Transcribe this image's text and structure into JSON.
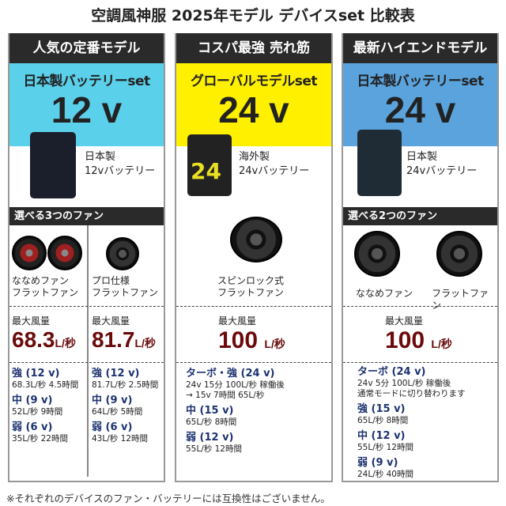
{
  "title": "空調風神服 2025年モデル デバイスset 比較表",
  "columns": [
    {
      "header": "人気の定番モデル",
      "subtitle": "日本製バッテリーset",
      "voltage": "12 v",
      "band_color": "#5bd0ea",
      "battery": {
        "origin": "日本製",
        "name": "12vバッテリー"
      },
      "fan_section": "選べる3つのファン",
      "fans": [
        {
          "label": "ななめファン\nフラットファン",
          "max_label": "最大風量",
          "max_value": "68.3",
          "unit": "L/秒",
          "modes": [
            {
              "name": "強 (12 v)",
              "detail": "68.3L/秒 4.5時間"
            },
            {
              "name": "中 (9 v)",
              "detail": "52L/秒 9時間"
            },
            {
              "name": "弱 (6 v)",
              "detail": "35L/秒 22時間"
            }
          ]
        },
        {
          "label": "プロ仕様\nフラットファン",
          "max_label": "最大風量",
          "max_value": "81.7",
          "unit": "L/秒",
          "modes": [
            {
              "name": "強 (12 v)",
              "detail": "81.7L/秒 2.5時間"
            },
            {
              "name": "中 (9 v)",
              "detail": "64L/秒 5時間"
            },
            {
              "name": "弱 (6 v)",
              "detail": "43L/秒 12時間"
            }
          ]
        }
      ]
    },
    {
      "header": "コスパ最強 売れ筋",
      "subtitle": "グローバルモデルset",
      "voltage": "24 v",
      "band_color": "#fff000",
      "battery": {
        "origin": "海外製",
        "name": "24vバッテリー"
      },
      "fans": [
        {
          "label": "スピンロック式\nフラットファン",
          "max_label": "最大風量",
          "max_value": "100",
          "unit": "L/秒",
          "modes": [
            {
              "name": "ターボ・強 (24 v)",
              "detail": "24v 15分 100L/秒 稼働後\n→ 15v 7時間 65L/秒"
            },
            {
              "name": "中 (15 v)",
              "detail": "65L/秒 8時間"
            },
            {
              "name": "弱 (12 v)",
              "detail": "55L/秒 12時間"
            }
          ]
        }
      ]
    },
    {
      "header": "最新ハイエンドモデル",
      "subtitle": "日本製バッテリーset",
      "voltage": "24 v",
      "band_color": "#5aa3dc",
      "battery": {
        "origin": "日本製",
        "name": "24vバッテリー"
      },
      "fan_section": "選べる2つのファン",
      "fans": [
        {
          "label": "ななめファン",
          "label2": "フラットファン",
          "max_label": "最大風量",
          "max_value": "100",
          "unit": "L/秒",
          "modes": [
            {
              "name": "ターボ (24 v)",
              "detail": "24v 5分 100L/秒 稼働後\n通常モードに切り替わります"
            },
            {
              "name": "強 (15 v)",
              "detail": "65L/秒 8時間"
            },
            {
              "name": "中 (12 v)",
              "detail": "55L/秒 12時間"
            },
            {
              "name": "弱 (9 v)",
              "detail": "24L/秒 40時間"
            }
          ]
        }
      ]
    }
  ],
  "note": "※それぞれのデバイスのファン・バッテリーには互換性はございません。"
}
